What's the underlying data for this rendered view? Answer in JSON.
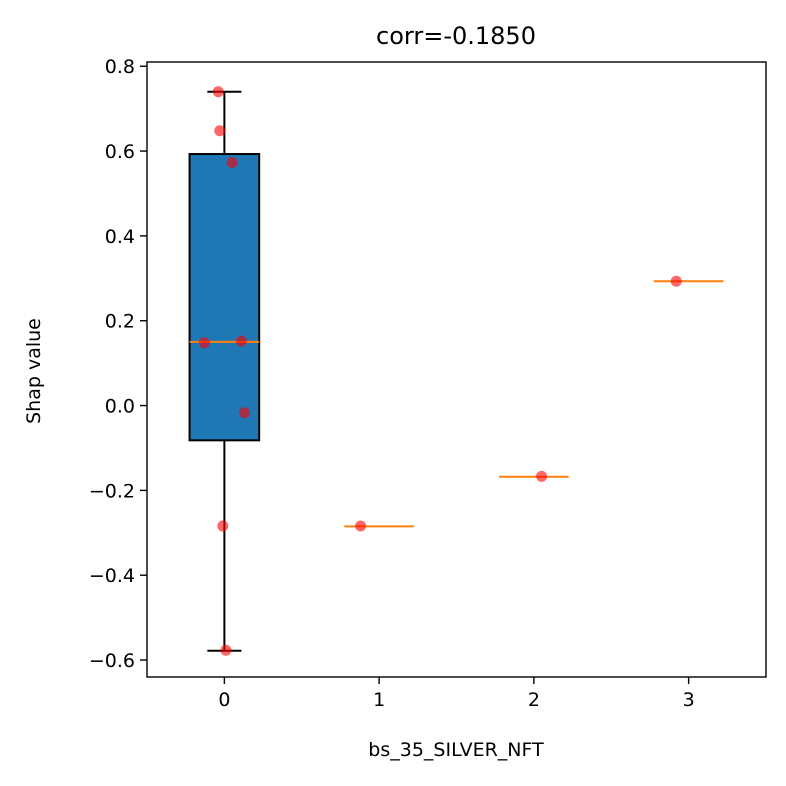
{
  "chart_data": {
    "type": "box",
    "title": "corr=-0.1850",
    "xlabel": "bs_35_SILVER_NFT",
    "ylabel": "Shap value",
    "xlim": [
      -0.5,
      3.5
    ],
    "ylim": [
      -0.64,
      0.81
    ],
    "x_ticks": [
      0,
      1,
      2,
      3
    ],
    "x_tick_labels": [
      "0",
      "1",
      "2",
      "3"
    ],
    "y_ticks": [
      0.8,
      0.6,
      0.4,
      0.2,
      0.0,
      -0.2,
      -0.4,
      -0.6
    ],
    "y_tick_labels": [
      "0.8",
      "0.6",
      "0.4",
      "0.2",
      "0.0",
      "−0.2",
      "−0.4",
      "−0.6"
    ],
    "grid": false,
    "colors": {
      "box_fill": "#1f77b4",
      "median": "#ff7f0e",
      "points": "#ff0000",
      "axis": "#000000"
    },
    "boxes": [
      {
        "x": 0,
        "whisker_low": -0.578,
        "q1": -0.082,
        "median": 0.15,
        "q3": 0.593,
        "whisker_high": 0.74
      },
      {
        "x": 1,
        "whisker_low": -0.285,
        "q1": -0.285,
        "median": -0.285,
        "q3": -0.285,
        "whisker_high": -0.285
      },
      {
        "x": 2,
        "whisker_low": -0.168,
        "q1": -0.168,
        "median": -0.168,
        "q3": -0.168,
        "whisker_high": -0.168
      },
      {
        "x": 3,
        "whisker_low": 0.293,
        "q1": 0.293,
        "median": 0.293,
        "q3": 0.293,
        "whisker_high": 0.293
      }
    ],
    "points": [
      {
        "x": -0.04,
        "y": 0.74
      },
      {
        "x": -0.03,
        "y": 0.648
      },
      {
        "x": 0.05,
        "y": 0.573
      },
      {
        "x": -0.13,
        "y": 0.148
      },
      {
        "x": 0.11,
        "y": 0.152
      },
      {
        "x": 0.13,
        "y": -0.017
      },
      {
        "x": -0.01,
        "y": -0.284
      },
      {
        "x": 0.01,
        "y": -0.577
      },
      {
        "x": 0.88,
        "y": -0.284
      },
      {
        "x": 2.05,
        "y": -0.167
      },
      {
        "x": 2.92,
        "y": 0.293
      }
    ]
  }
}
